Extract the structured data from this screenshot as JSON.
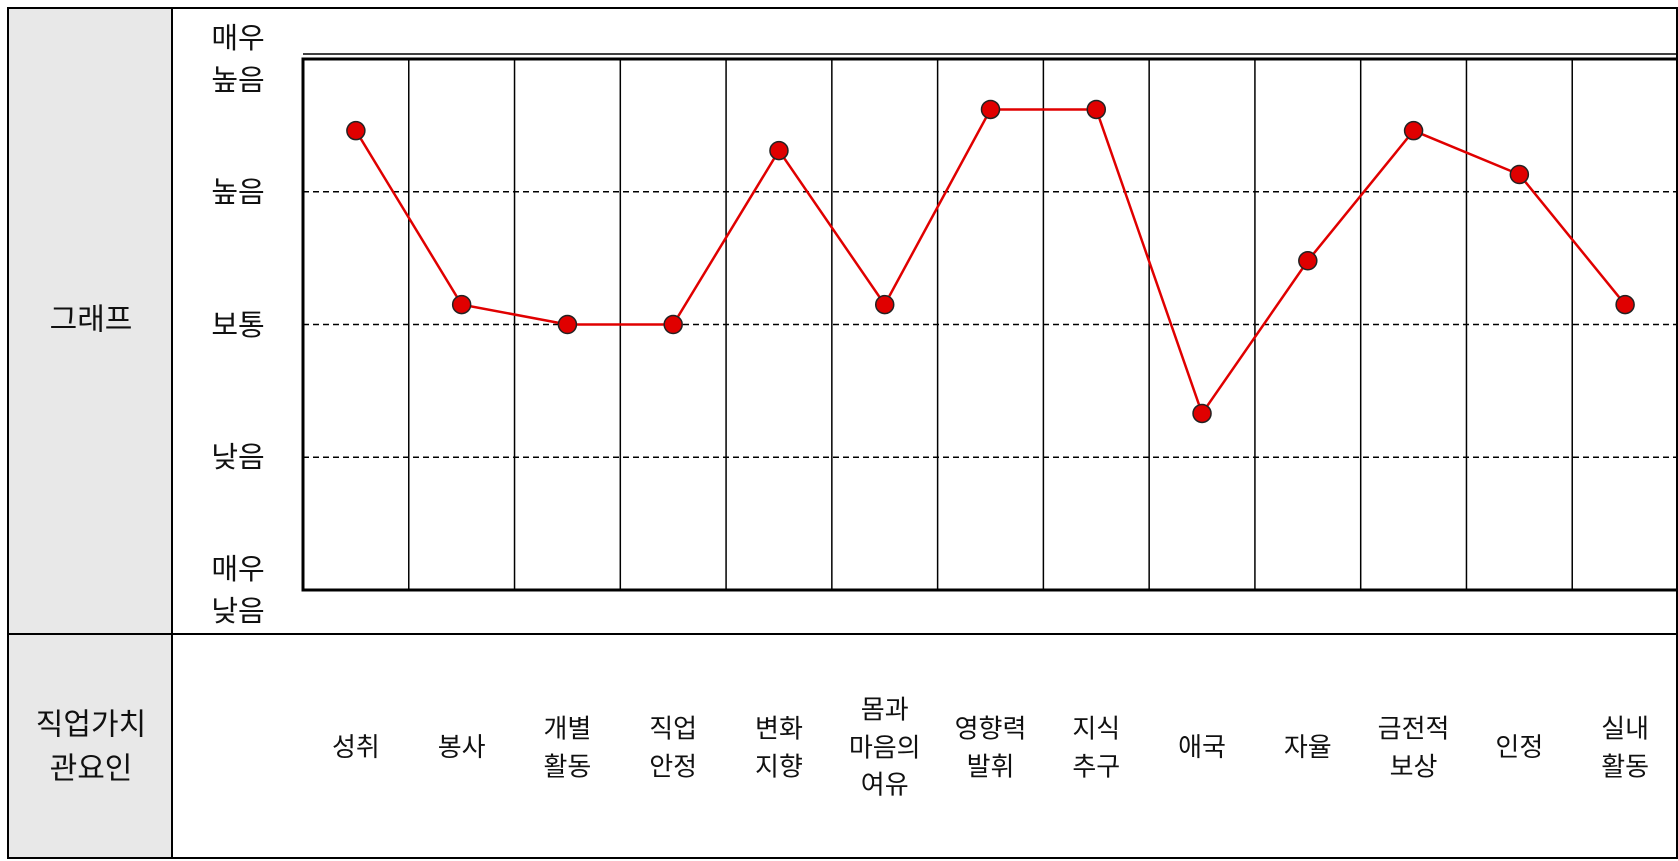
{
  "row_labels": [
    "그래프",
    "직업가치 관요인"
  ],
  "chart_data": {
    "type": "line",
    "categories": [
      "성취",
      "봉사",
      "개별 활동",
      "직업 안정",
      "변화 지향",
      "몸과 마음의 여유",
      "영향력 발휘",
      "지식 추구",
      "애국",
      "자율",
      "금전적 보상",
      "인정",
      "실내 활동"
    ],
    "series": [
      {
        "color": "#e00000",
        "values": [
          4.46,
          3.15,
          3.0,
          3.0,
          4.31,
          3.15,
          4.62,
          4.62,
          2.33,
          3.48,
          4.46,
          4.13,
          3.15
        ]
      }
    ],
    "ylim": [
      1,
      5
    ],
    "yticks": [
      {
        "value": 1,
        "label": "매우 낮음"
      },
      {
        "value": 2,
        "label": "낮음"
      },
      {
        "value": 3,
        "label": "보통"
      },
      {
        "value": 4,
        "label": "높음"
      },
      {
        "value": 5,
        "label": "매우 높음"
      }
    ],
    "grid": true
  }
}
